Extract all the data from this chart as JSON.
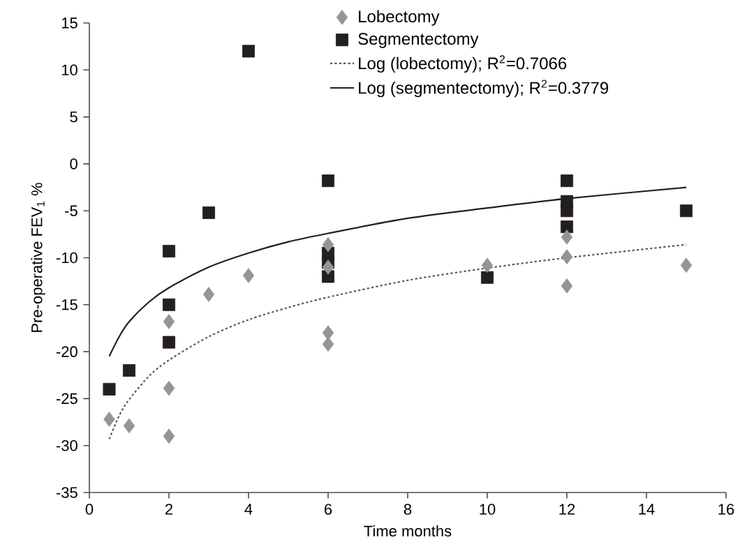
{
  "chart_data": {
    "type": "scatter",
    "xlabel": "Time months",
    "ylabel": "Pre-operative FEV$_{1}$ %",
    "xlim": [
      0,
      16
    ],
    "ylim": [
      -35,
      15
    ],
    "xticks": [
      0,
      2,
      4,
      6,
      8,
      10,
      12,
      14,
      16
    ],
    "yticks": [
      -35,
      -30,
      -25,
      -20,
      -15,
      -10,
      -5,
      0,
      5,
      10,
      15
    ],
    "grid": false,
    "legend": "top right",
    "series": [
      {
        "name": "Lobectomy",
        "type": "scatter",
        "marker": "diamond",
        "color": "#939598",
        "x": [
          0.5,
          1,
          2,
          2,
          2,
          3,
          4,
          6,
          6,
          6,
          6,
          10,
          12,
          12,
          12,
          15
        ],
        "values": [
          -27.2,
          -27.9,
          -16.8,
          -23.9,
          -29,
          -13.9,
          -11.9,
          -8.6,
          -11,
          -18,
          -19.2,
          -10.8,
          -7.8,
          -9.9,
          -13,
          -10.8
        ]
      },
      {
        "name": "Segmentectomy",
        "type": "scatter",
        "marker": "square",
        "color": "#231f20",
        "x": [
          0.5,
          1,
          2,
          2,
          2,
          3,
          4,
          6,
          6,
          6,
          6,
          10,
          12,
          12,
          12,
          12,
          15
        ],
        "values": [
          -24,
          -22,
          -9.3,
          -15,
          -19,
          -5.2,
          12,
          -1.8,
          -9.5,
          -10.5,
          -12,
          -12.1,
          -1.8,
          -4,
          -5,
          -6.7,
          -5
        ]
      },
      {
        "name": "Log (lobectomy); R$^{2}$=0.7066",
        "type": "line",
        "marker": "none",
        "line_style": "dotted",
        "color": "#58595b",
        "x": [
          0.5,
          0.75,
          1,
          1.5,
          2,
          3,
          4,
          5,
          6,
          8,
          10,
          12,
          15
        ],
        "values": [
          -29.3,
          -26.8,
          -25.1,
          -22.6,
          -20.9,
          -18.4,
          -16.6,
          -15.3,
          -14.2,
          -12.4,
          -11.1,
          -10.0,
          -8.6
        ]
      },
      {
        "name": "Log (segmentectomy); R$^{2}$=0.3779",
        "type": "line",
        "marker": "none",
        "line_style": "solid",
        "color": "#231f20",
        "x": [
          0.5,
          0.75,
          1,
          1.5,
          2,
          3,
          4,
          5,
          6,
          8,
          10,
          12,
          15
        ],
        "values": [
          -20.5,
          -18.4,
          -16.8,
          -14.7,
          -13.2,
          -11.0,
          -9.5,
          -8.3,
          -7.4,
          -5.8,
          -4.7,
          -3.7,
          -2.5
        ]
      }
    ]
  }
}
